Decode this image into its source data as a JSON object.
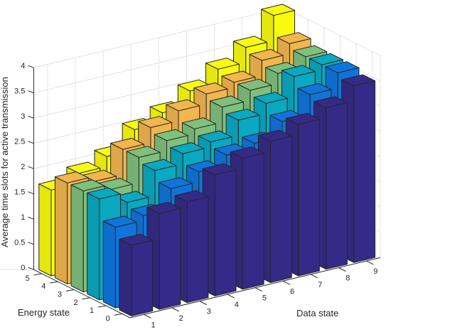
{
  "chart_data": {
    "type": "bar3d",
    "title": "",
    "xlabel": "Data state",
    "ylabel": "Energy state",
    "zlabel": "Average time slots for active transmission",
    "x_ticks": [
      "1",
      "2",
      "3",
      "4",
      "5",
      "6",
      "7",
      "8",
      "9"
    ],
    "y_ticks": [
      "0",
      "1",
      "2",
      "3",
      "4",
      "5"
    ],
    "z_ticks": [
      "0",
      "0.5",
      "1",
      "1.5",
      "2",
      "2.5",
      "3",
      "3.5",
      "4"
    ],
    "zlim": [
      0,
      4
    ],
    "grid": true,
    "categories": [
      1,
      2,
      3,
      4,
      5,
      6,
      7,
      8,
      9
    ],
    "series": [
      {
        "name": "Energy state 0",
        "color": "#352a87",
        "values": [
          1.4,
          1.9,
          2.0,
          2.4,
          2.6,
          2.8,
          3.0,
          3.2,
          3.5
        ]
      },
      {
        "name": "Energy state 1",
        "color": "#0f75dd",
        "values": [
          1.6,
          1.7,
          2.1,
          2.3,
          2.5,
          2.6,
          2.9,
          3.3,
          3.6
        ]
      },
      {
        "name": "Energy state 2",
        "color": "#09a9c0",
        "values": [
          2.0,
          1.8,
          2.3,
          2.5,
          2.6,
          2.9,
          3.1,
          3.5,
          3.6
        ]
      },
      {
        "name": "Energy state 3",
        "color": "#7ec07c",
        "values": [
          2.0,
          1.9,
          2.4,
          2.6,
          2.7,
          3.0,
          3.2,
          3.4,
          3.6
        ]
      },
      {
        "name": "Energy state 4",
        "color": "#f1b64e",
        "values": [
          2.0,
          1.9,
          2.4,
          2.7,
          2.9,
          3.1,
          3.2,
          3.5,
          3.7
        ]
      },
      {
        "name": "Energy state 5",
        "color": "#f9fb0e",
        "values": [
          1.7,
          1.9,
          2.1,
          2.5,
          2.7,
          3.0,
          3.3,
          3.6,
          4.1
        ]
      }
    ]
  }
}
